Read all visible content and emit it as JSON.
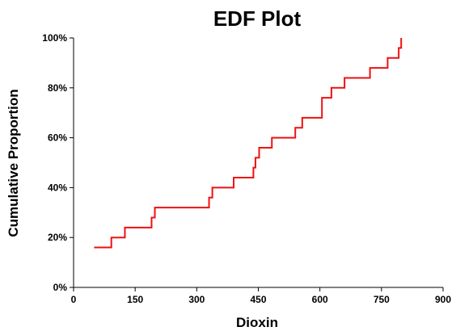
{
  "chart_data": {
    "type": "line",
    "step": true,
    "title": "EDF Plot",
    "xlabel": "Dioxin",
    "ylabel": "Cumulative Proportion",
    "xlim": [
      0,
      900
    ],
    "ylim": [
      0,
      1
    ],
    "x_ticks": [
      0,
      150,
      300,
      450,
      600,
      750,
      900
    ],
    "x_tick_labels": [
      "0",
      "150",
      "300",
      "450",
      "600",
      "750",
      "900"
    ],
    "y_ticks": [
      0,
      0.2,
      0.4,
      0.6,
      0.8,
      1.0
    ],
    "y_tick_labels": [
      "0%",
      "20%",
      "40%",
      "60%",
      "80%",
      "100%"
    ],
    "grid": false,
    "legend": "none",
    "series": [
      {
        "color": "#ee1111",
        "points": [
          [
            50,
            0.16
          ],
          [
            92,
            0.2
          ],
          [
            125,
            0.24
          ],
          [
            190,
            0.28
          ],
          [
            198,
            0.32
          ],
          [
            330,
            0.36
          ],
          [
            338,
            0.4
          ],
          [
            390,
            0.44
          ],
          [
            438,
            0.48
          ],
          [
            443,
            0.52
          ],
          [
            452,
            0.56
          ],
          [
            483,
            0.6
          ],
          [
            540,
            0.64
          ],
          [
            557,
            0.68
          ],
          [
            605,
            0.76
          ],
          [
            628,
            0.8
          ],
          [
            660,
            0.84
          ],
          [
            722,
            0.88
          ],
          [
            765,
            0.92
          ],
          [
            792,
            0.96
          ],
          [
            798,
            1.0
          ]
        ]
      }
    ]
  }
}
